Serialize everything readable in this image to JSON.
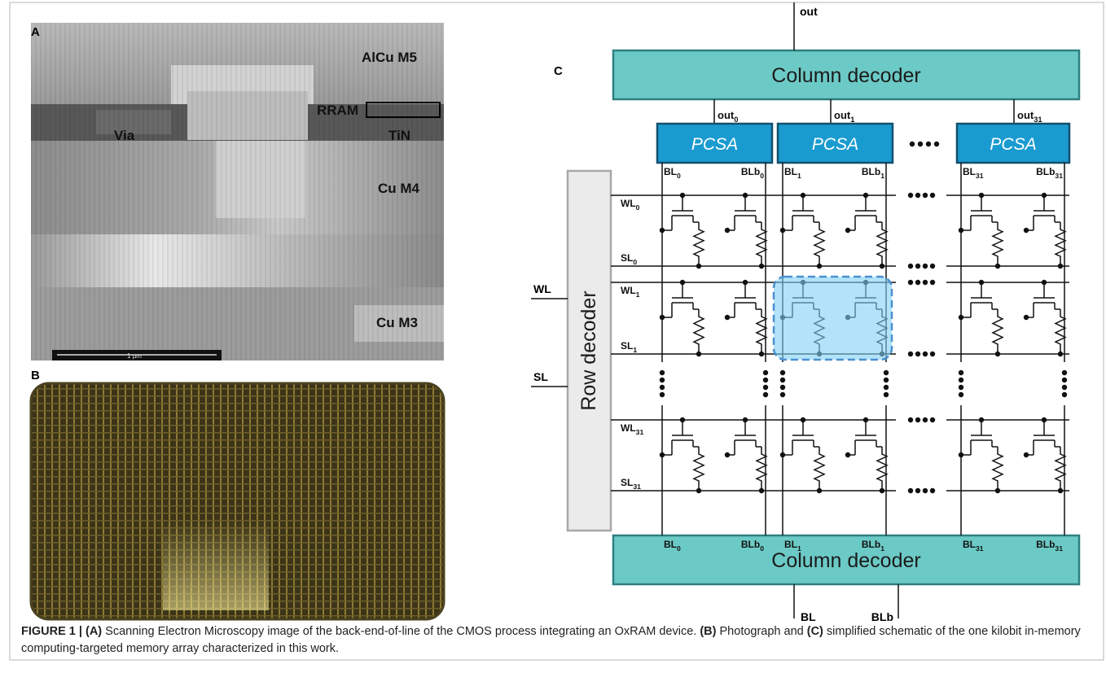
{
  "figure": {
    "panel_a": {
      "label": "A",
      "annotations": [
        "AlCu M5",
        "RRAM",
        "TiN",
        "Via",
        "Cu M4",
        "Cu M3"
      ],
      "scale_bar": "1 µm"
    },
    "panel_b": {
      "label": "B"
    },
    "panel_c": {
      "label": "C",
      "output": "out",
      "top_decoder": "Column decoder",
      "bottom_decoder": "Column decoder",
      "row_decoder": "Row decoder",
      "column_outputs": [
        {
          "text": "out",
          "sub": "0"
        },
        {
          "text": "out",
          "sub": "1"
        },
        {
          "text": "out",
          "sub": "31"
        }
      ],
      "sense_amps": [
        "PCSA",
        "PCSA",
        "PCSA"
      ],
      "top_bitlines": [
        {
          "text": "BL",
          "sub": "0"
        },
        {
          "text": "BLb",
          "sub": "0"
        },
        {
          "text": "BL",
          "sub": "1"
        },
        {
          "text": "BLb",
          "sub": "1"
        },
        {
          "text": "BL",
          "sub": "31"
        },
        {
          "text": "BLb",
          "sub": "31"
        }
      ],
      "bottom_bitlines": [
        {
          "text": "BL",
          "sub": "0"
        },
        {
          "text": "BLb",
          "sub": "0"
        },
        {
          "text": "BL",
          "sub": "1"
        },
        {
          "text": "BLb",
          "sub": "1"
        },
        {
          "text": "BL",
          "sub": "31"
        },
        {
          "text": "BLb",
          "sub": "31"
        }
      ],
      "row_lines": [
        {
          "text": "WL",
          "sub": "0"
        },
        {
          "text": "SL",
          "sub": "0"
        },
        {
          "text": "WL",
          "sub": "1"
        },
        {
          "text": "SL",
          "sub": "1"
        },
        {
          "text": "WL",
          "sub": "31"
        },
        {
          "text": "SL",
          "sub": "31"
        }
      ],
      "row_inputs": [
        "WL",
        "SL"
      ],
      "bottom_ports": [
        "BL",
        "BLb"
      ]
    }
  },
  "caption": [
    {
      "text": "FIGURE 1 | (A)",
      "bold": true
    },
    {
      "text": " Scanning Electron Microscopy image of the back-end-of-line of the CMOS process integrating an OxRAM device. ",
      "bold": false
    },
    {
      "text": "(B)",
      "bold": true
    },
    {
      "text": " Photograph and ",
      "bold": false
    },
    {
      "text": "(C)",
      "bold": true
    },
    {
      "text": " simplified schematic of the one kilobit in-memory computing-targeted memory array characterized in this work.",
      "bold": false
    }
  ]
}
